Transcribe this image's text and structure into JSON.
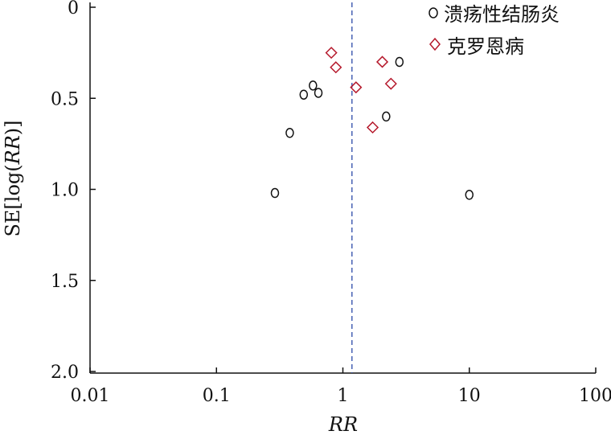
{
  "chart_data": {
    "type": "scatter",
    "title": "",
    "xlabel": "RR",
    "ylabel": "SE[log(RR)]",
    "ylabel_parts": [
      "SE[log(",
      "RR",
      ")]"
    ],
    "x_scale": "log",
    "xlim": [
      0.01,
      100
    ],
    "ylim": [
      0,
      2.0
    ],
    "y_inverted": true,
    "x_ticks": [
      0.01,
      0.1,
      1,
      10,
      100
    ],
    "x_tick_labels": [
      "0.01",
      "0.1",
      "1",
      "10",
      "100"
    ],
    "y_ticks": [
      0,
      0.5,
      1.0,
      1.5,
      2.0
    ],
    "y_tick_labels": [
      "0",
      "0.5",
      "1.0",
      "1.5",
      "2.0"
    ],
    "reference_line": {
      "x": 1.18,
      "style": "dashed",
      "color": "#2b4aa8"
    },
    "grid": false,
    "legend_position": "top-right",
    "series": [
      {
        "name": "溃疡性结肠炎",
        "marker": "circle",
        "color": "#111111",
        "points": [
          {
            "x": 0.29,
            "y": 1.02
          },
          {
            "x": 0.38,
            "y": 0.69
          },
          {
            "x": 0.49,
            "y": 0.48
          },
          {
            "x": 0.58,
            "y": 0.43
          },
          {
            "x": 0.64,
            "y": 0.47
          },
          {
            "x": 2.2,
            "y": 0.6
          },
          {
            "x": 2.8,
            "y": 0.3
          },
          {
            "x": 10.0,
            "y": 1.03
          }
        ]
      },
      {
        "name": "克罗恩病",
        "marker": "diamond",
        "color": "#b5182b",
        "points": [
          {
            "x": 0.81,
            "y": 0.25
          },
          {
            "x": 0.88,
            "y": 0.33
          },
          {
            "x": 1.27,
            "y": 0.44
          },
          {
            "x": 1.72,
            "y": 0.66
          },
          {
            "x": 2.05,
            "y": 0.3
          },
          {
            "x": 2.4,
            "y": 0.42
          }
        ]
      }
    ]
  }
}
